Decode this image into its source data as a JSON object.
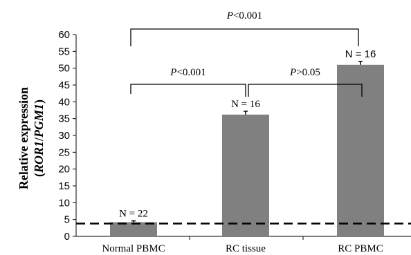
{
  "chart_data": {
    "type": "bar",
    "categories": [
      "Normal PBMC",
      "RC tissue",
      "RC PBMC"
    ],
    "values": [
      4.2,
      36.2,
      51.0
    ],
    "errors": [
      0.4,
      1.0,
      1.0
    ],
    "n_labels": [
      "N = 22",
      "N = 16",
      "N = 16"
    ],
    "ylabel_line1": "Relative expression",
    "ylabel_line2": {
      "open": "(",
      "numerator": "ROR1",
      "slash": "/",
      "denominator": "PGM1",
      "close": ")"
    },
    "ylim": [
      0,
      60
    ],
    "yticks": [
      0,
      5,
      10,
      15,
      20,
      25,
      30,
      35,
      40,
      45,
      50,
      55,
      60
    ],
    "reference_line": 3.8,
    "bar_color": "#808080",
    "comparisons": [
      {
        "from": 0,
        "to": 2,
        "p": "P",
        "relation": "<0.001"
      },
      {
        "from": 0,
        "to": 1,
        "p": "P",
        "relation": "<0.001"
      },
      {
        "from": 1,
        "to": 2,
        "p": "P",
        "relation": ">0.05"
      }
    ]
  }
}
